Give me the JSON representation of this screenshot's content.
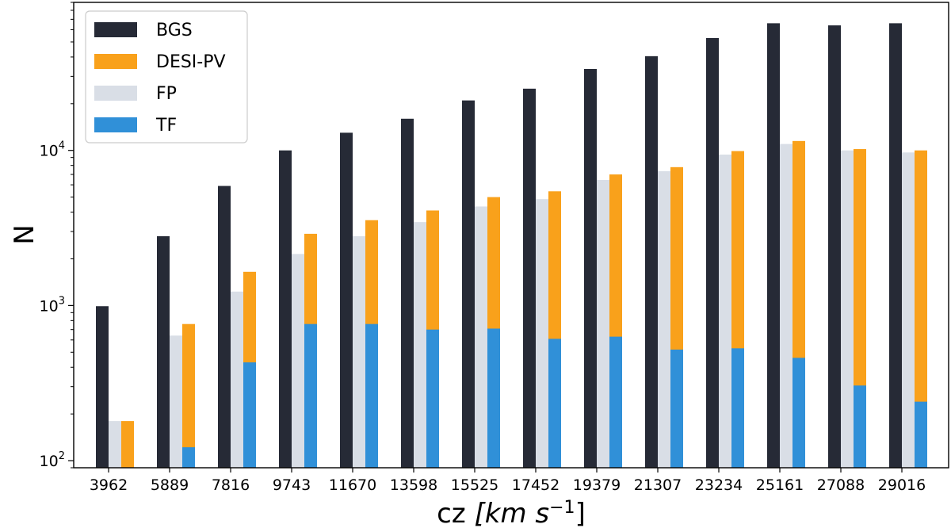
{
  "chart_data": {
    "type": "bar",
    "scale": "log",
    "xlabel": "cz [km s⁻¹]",
    "xlabel_main": "cz ",
    "xlabel_unit": "[km s",
    "xlabel_exp": "−1",
    "xlabel_close": "]",
    "ylabel": "N",
    "ylim": [
      90,
      90000
    ],
    "legend_position": "top-left",
    "categories": [
      "3962",
      "5889",
      "7816",
      "9743",
      "11670",
      "13598",
      "15525",
      "17452",
      "19379",
      "21307",
      "23234",
      "25161",
      "27088",
      "29016"
    ],
    "yticks": [
      {
        "value": 100,
        "base": "10",
        "exp": "2"
      },
      {
        "value": 1000,
        "base": "10",
        "exp": "3"
      },
      {
        "value": 10000,
        "base": "10",
        "exp": "4"
      }
    ],
    "series": [
      {
        "name": "BGS",
        "color": "#262a36",
        "values": [
          990,
          2800,
          5900,
          10000,
          13000,
          16000,
          21000,
          25000,
          33500,
          40500,
          53000,
          66000,
          64000,
          66000
        ]
      },
      {
        "name": "DESI-PV",
        "color": "#f9a11b",
        "values": [
          180,
          760,
          1650,
          2900,
          3550,
          4100,
          5000,
          5450,
          7000,
          7800,
          9900,
          11500,
          10200,
          10000
        ]
      },
      {
        "name": "FP",
        "color": "#d9dee6",
        "values": [
          180,
          640,
          1230,
          2150,
          2800,
          3450,
          4350,
          4850,
          6450,
          7350,
          9400,
          11000,
          10000,
          9700
        ]
      },
      {
        "name": "TF",
        "color": "#3090d8",
        "values": [
          null,
          122,
          430,
          760,
          760,
          700,
          710,
          610,
          630,
          520,
          530,
          460,
          305,
          240
        ]
      }
    ]
  }
}
